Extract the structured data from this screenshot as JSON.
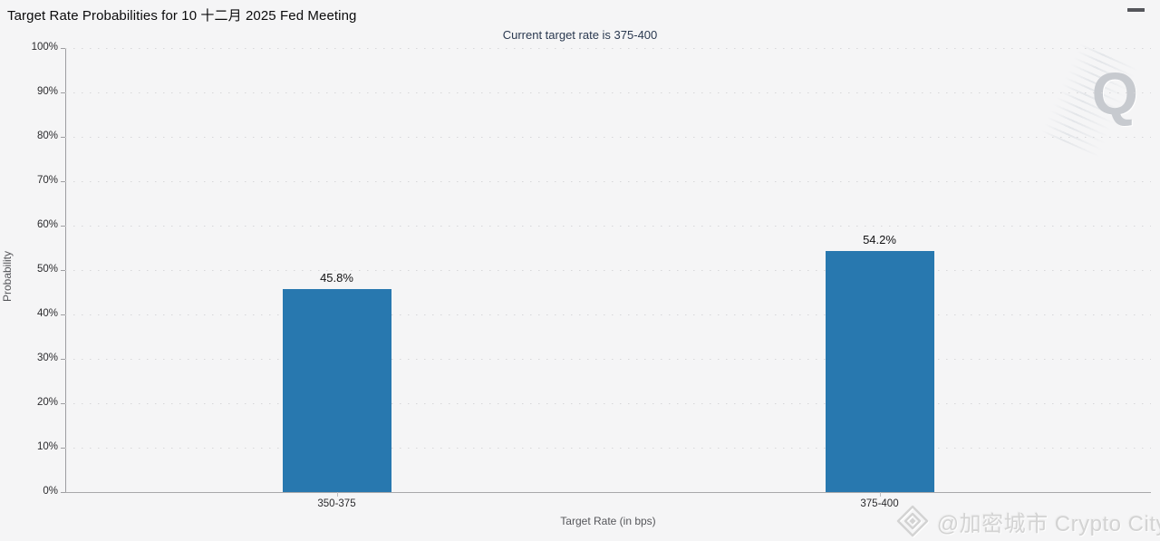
{
  "header": {
    "title": "Target Rate Probabilities for 10 十二月 2025 Fed Meeting",
    "menu_icon": "hamburger-icon"
  },
  "chart_data": {
    "type": "bar",
    "title": "Target Rate Probabilities for 10 十二月 2025 Fed Meeting",
    "subtitle": "Current target rate is 375-400",
    "categories": [
      "350-375",
      "375-400"
    ],
    "values": [
      45.8,
      54.2
    ],
    "value_labels": [
      "45.8%",
      "54.2%"
    ],
    "xlabel": "Target Rate (in bps)",
    "ylabel": "Probability",
    "ylim": [
      0,
      100
    ],
    "yticks": {
      "values": [
        0,
        10,
        20,
        30,
        40,
        50,
        60,
        70,
        80,
        90,
        100
      ],
      "labels": [
        "0%",
        "10%",
        "20%",
        "30%",
        "40%",
        "50%",
        "60%",
        "70%",
        "80%",
        "90%",
        "100%"
      ]
    },
    "bar_color": "#2878af",
    "grid": "dotted-horizontal",
    "legend": "none"
  },
  "watermarks": {
    "q_letter": "Q",
    "credit_text": "@加密城市 Crypto City",
    "credit_icon": "diamond-logo-icon"
  },
  "colors": {
    "background": "#f5f5f6",
    "bar": "#2878af",
    "subtitle": "#2a3950",
    "axis": "#9e9ea1",
    "gridline": "#d7d7d9",
    "watermark": "#d3d3d3"
  }
}
